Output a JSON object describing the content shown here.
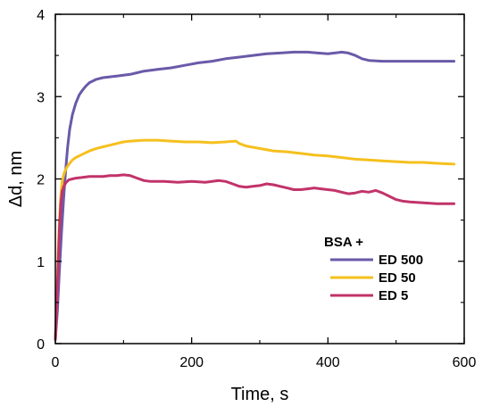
{
  "chart_data": {
    "type": "line",
    "xlabel": "Time, s",
    "ylabel": "Δd, nm",
    "xlim": [
      0,
      600
    ],
    "ylim": [
      0,
      4
    ],
    "xticks": [
      0,
      200,
      400,
      600
    ],
    "yticks": [
      0,
      1,
      2,
      3,
      4
    ],
    "xtick_labels": [
      "0",
      "200",
      "400",
      "600"
    ],
    "ytick_labels": [
      "0",
      "1",
      "2",
      "3",
      "4"
    ],
    "grid": false,
    "legend": {
      "title": "BSA +",
      "placement": "bottom-right"
    },
    "series": [
      {
        "name": "ED 500",
        "color": "#6a5aa8",
        "points": [
          [
            0,
            0.05
          ],
          [
            3,
            0.4
          ],
          [
            6,
            0.9
          ],
          [
            9,
            1.35
          ],
          [
            12,
            1.75
          ],
          [
            15,
            2.1
          ],
          [
            18,
            2.38
          ],
          [
            21,
            2.6
          ],
          [
            25,
            2.78
          ],
          [
            30,
            2.92
          ],
          [
            35,
            3.02
          ],
          [
            40,
            3.08
          ],
          [
            45,
            3.13
          ],
          [
            50,
            3.17
          ],
          [
            60,
            3.21
          ],
          [
            70,
            3.23
          ],
          [
            80,
            3.24
          ],
          [
            90,
            3.25
          ],
          [
            100,
            3.26
          ],
          [
            110,
            3.27
          ],
          [
            120,
            3.29
          ],
          [
            130,
            3.31
          ],
          [
            140,
            3.32
          ],
          [
            150,
            3.33
          ],
          [
            170,
            3.35
          ],
          [
            190,
            3.38
          ],
          [
            210,
            3.41
          ],
          [
            230,
            3.43
          ],
          [
            250,
            3.46
          ],
          [
            270,
            3.48
          ],
          [
            290,
            3.5
          ],
          [
            310,
            3.52
          ],
          [
            330,
            3.53
          ],
          [
            350,
            3.54
          ],
          [
            370,
            3.54
          ],
          [
            385,
            3.53
          ],
          [
            400,
            3.52
          ],
          [
            410,
            3.53
          ],
          [
            420,
            3.54
          ],
          [
            430,
            3.53
          ],
          [
            440,
            3.5
          ],
          [
            450,
            3.46
          ],
          [
            460,
            3.44
          ],
          [
            480,
            3.43
          ],
          [
            500,
            3.43
          ],
          [
            520,
            3.43
          ],
          [
            540,
            3.43
          ],
          [
            560,
            3.43
          ],
          [
            570,
            3.43
          ],
          [
            585,
            3.43
          ]
        ]
      },
      {
        "name": "ED 50",
        "color": "#f5c01f",
        "points": [
          [
            0,
            0.05
          ],
          [
            2,
            0.5
          ],
          [
            4,
            1.1
          ],
          [
            6,
            1.5
          ],
          [
            8,
            1.8
          ],
          [
            10,
            1.97
          ],
          [
            13,
            2.07
          ],
          [
            16,
            2.13
          ],
          [
            20,
            2.18
          ],
          [
            25,
            2.23
          ],
          [
            30,
            2.26
          ],
          [
            40,
            2.3
          ],
          [
            50,
            2.34
          ],
          [
            60,
            2.37
          ],
          [
            70,
            2.39
          ],
          [
            80,
            2.41
          ],
          [
            90,
            2.43
          ],
          [
            100,
            2.45
          ],
          [
            110,
            2.46
          ],
          [
            130,
            2.47
          ],
          [
            150,
            2.47
          ],
          [
            170,
            2.46
          ],
          [
            190,
            2.45
          ],
          [
            210,
            2.45
          ],
          [
            230,
            2.44
          ],
          [
            250,
            2.45
          ],
          [
            265,
            2.46
          ],
          [
            270,
            2.43
          ],
          [
            280,
            2.4
          ],
          [
            300,
            2.37
          ],
          [
            320,
            2.34
          ],
          [
            340,
            2.33
          ],
          [
            360,
            2.31
          ],
          [
            380,
            2.29
          ],
          [
            400,
            2.28
          ],
          [
            420,
            2.26
          ],
          [
            440,
            2.24
          ],
          [
            460,
            2.23
          ],
          [
            480,
            2.22
          ],
          [
            500,
            2.21
          ],
          [
            520,
            2.2
          ],
          [
            540,
            2.2
          ],
          [
            560,
            2.19
          ],
          [
            585,
            2.18
          ]
        ]
      },
      {
        "name": "ED 5",
        "color": "#c2336a",
        "points": [
          [
            0,
            0.05
          ],
          [
            2,
            0.45
          ],
          [
            4,
            0.95
          ],
          [
            6,
            1.4
          ],
          [
            8,
            1.7
          ],
          [
            10,
            1.85
          ],
          [
            13,
            1.92
          ],
          [
            16,
            1.96
          ],
          [
            20,
            1.99
          ],
          [
            25,
            2.0
          ],
          [
            30,
            2.01
          ],
          [
            40,
            2.02
          ],
          [
            50,
            2.03
          ],
          [
            60,
            2.03
          ],
          [
            70,
            2.03
          ],
          [
            80,
            2.04
          ],
          [
            90,
            2.04
          ],
          [
            100,
            2.05
          ],
          [
            110,
            2.04
          ],
          [
            120,
            2.01
          ],
          [
            130,
            1.98
          ],
          [
            140,
            1.97
          ],
          [
            160,
            1.97
          ],
          [
            180,
            1.96
          ],
          [
            200,
            1.97
          ],
          [
            220,
            1.96
          ],
          [
            240,
            1.98
          ],
          [
            250,
            1.97
          ],
          [
            260,
            1.94
          ],
          [
            270,
            1.91
          ],
          [
            280,
            1.9
          ],
          [
            290,
            1.91
          ],
          [
            300,
            1.92
          ],
          [
            310,
            1.94
          ],
          [
            320,
            1.93
          ],
          [
            330,
            1.91
          ],
          [
            340,
            1.89
          ],
          [
            350,
            1.87
          ],
          [
            360,
            1.87
          ],
          [
            370,
            1.88
          ],
          [
            380,
            1.89
          ],
          [
            390,
            1.88
          ],
          [
            400,
            1.87
          ],
          [
            410,
            1.86
          ],
          [
            420,
            1.84
          ],
          [
            430,
            1.82
          ],
          [
            440,
            1.83
          ],
          [
            450,
            1.85
          ],
          [
            460,
            1.84
          ],
          [
            470,
            1.86
          ],
          [
            480,
            1.83
          ],
          [
            490,
            1.79
          ],
          [
            500,
            1.75
          ],
          [
            510,
            1.73
          ],
          [
            520,
            1.72
          ],
          [
            540,
            1.71
          ],
          [
            560,
            1.7
          ],
          [
            585,
            1.7
          ]
        ]
      }
    ]
  }
}
